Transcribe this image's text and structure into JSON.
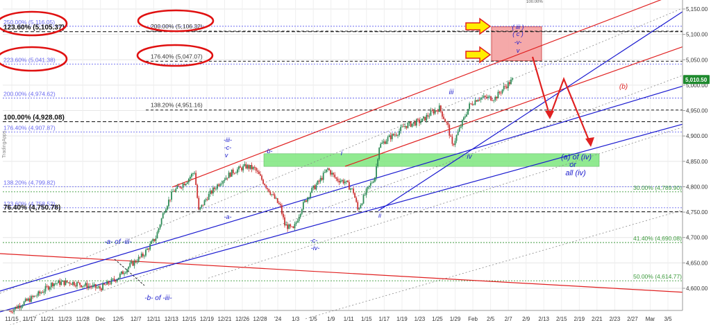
{
  "chart_data": {
    "type": "candlestick",
    "title": "",
    "xlabel": "",
    "ylabel": "",
    "ylim": [
      4550,
      5175
    ],
    "side_watermark": "TradingApps",
    "last_price": "5,010.50",
    "y_ticks": [
      "5,150.00",
      "5,100.00",
      "5,050.00",
      "5,000.00",
      "4,950.00",
      "4,900.00",
      "4,850.00",
      "4,800.00",
      "4,750.00",
      "4,700.00",
      "4,650.00",
      "4,600.00"
    ],
    "y_tick_values": [
      5150,
      5100,
      5050,
      5000,
      4950,
      4900,
      4850,
      4800,
      4750,
      4700,
      4650,
      4600
    ],
    "x_ticks": [
      "11/15",
      "11/17",
      "11/21",
      "11/23",
      "11/28",
      "Dec",
      "12/5",
      "12/7",
      "12/11",
      "12/13",
      "12/15",
      "12/19",
      "12/21",
      "12/26",
      "12/28",
      "'24",
      "1/3",
      "1/5",
      "1/9",
      "1/11",
      "1/15",
      "1/17",
      "1/19",
      "1/23",
      "1/25",
      "1/29",
      "Feb",
      "2/5",
      "2/7",
      "2/9",
      "2/13",
      "2/15",
      "2/19",
      "2/21",
      "2/23",
      "2/27",
      "Mar",
      "3/5"
    ],
    "price_path": [
      [
        0,
        4555
      ],
      [
        4,
        4575
      ],
      [
        7,
        4590
      ],
      [
        10,
        4610
      ],
      [
        14,
        4612
      ],
      [
        18,
        4605
      ],
      [
        21,
        4600
      ],
      [
        25,
        4620
      ],
      [
        28,
        4645
      ],
      [
        31,
        4665
      ],
      [
        34,
        4700
      ],
      [
        36,
        4755
      ],
      [
        38,
        4790
      ],
      [
        41,
        4810
      ],
      [
        43,
        4830
      ],
      [
        44,
        4752
      ],
      [
        46,
        4780
      ],
      [
        49,
        4810
      ],
      [
        52,
        4830
      ],
      [
        55,
        4840
      ],
      [
        57,
        4835
      ],
      [
        59,
        4810
      ],
      [
        61,
        4785
      ],
      [
        63,
        4760
      ],
      [
        64,
        4725
      ],
      [
        66,
        4715
      ],
      [
        68,
        4760
      ],
      [
        70,
        4790
      ],
      [
        72,
        4810
      ],
      [
        74,
        4835
      ],
      [
        76,
        4815
      ],
      [
        78,
        4810
      ],
      [
        80,
        4790
      ],
      [
        81,
        4755
      ],
      [
        83,
        4790
      ],
      [
        85,
        4820
      ],
      [
        86,
        4880
      ],
      [
        88,
        4895
      ],
      [
        90,
        4905
      ],
      [
        92,
        4920
      ],
      [
        94,
        4925
      ],
      [
        96,
        4930
      ],
      [
        98,
        4945
      ],
      [
        100,
        4955
      ],
      [
        102,
        4918
      ],
      [
        103,
        4880
      ],
      [
        105,
        4920
      ],
      [
        107,
        4960
      ],
      [
        109,
        4975
      ],
      [
        111,
        4975
      ],
      [
        113,
        4975
      ],
      [
        115,
        4995
      ],
      [
        117,
        5010
      ]
    ],
    "fib_levels_left": [
      {
        "label": "250.00% (5,116.05)",
        "value": 5116.05,
        "color": "#6a6af0"
      },
      {
        "label": "123.60% (5,105.37)",
        "value": 5105.37,
        "color": "#111111",
        "bold": true
      },
      {
        "label": "223.60% (5,041.38)",
        "value": 5041.38,
        "color": "#6a6af0"
      },
      {
        "label": "200.00% (4,974.62)",
        "value": 4974.62,
        "color": "#6a6af0"
      },
      {
        "label": "100.00% (4,928.08)",
        "value": 4928.08,
        "color": "#111111",
        "bold": true
      },
      {
        "label": "176.40% (4,907.87)",
        "value": 4907.87,
        "color": "#6a6af0"
      },
      {
        "label": "138.20% (4,799.82)",
        "value": 4799.82,
        "color": "#6a6af0"
      },
      {
        "label": "123.60% (4,758.52)",
        "value": 4758.52,
        "color": "#6a6af0"
      },
      {
        "label": "76.40% (4,750.78)",
        "value": 4750.78,
        "color": "#111111",
        "bold": true
      }
    ],
    "fib_levels_mid": [
      {
        "label": "200.00% (5,106.32)",
        "value": 5106.32
      },
      {
        "label": "176.40% (5,047.07)",
        "value": 5047.07
      },
      {
        "label": "138.20% (4,951.16)",
        "value": 4951.16
      }
    ],
    "fib_levels_right": [
      {
        "label": "30.00% (4,789.90)",
        "value": 4789.9
      },
      {
        "label": "41.40% (4,690.08)",
        "value": 4690.08
      },
      {
        "label": "50.00% (4,614.77)",
        "value": 4614.77
      }
    ],
    "top_fragment": "100.00%",
    "wave_labels": [
      {
        "text": "-iii-",
        "color": "#1a1acc"
      },
      {
        "text": "-c-",
        "color": "#1a1acc"
      },
      {
        "text": "v",
        "color": "#1a1acc"
      },
      {
        "text": "-b-",
        "color": "#1a1acc"
      },
      {
        "text": "i",
        "color": "#1a1acc"
      },
      {
        "text": "iii",
        "color": "#1a1acc"
      },
      {
        "text": "iv",
        "color": "#1a1acc"
      },
      {
        "text": "ii",
        "color": "#1a1acc"
      },
      {
        "text": "-a-",
        "color": "#1a1acc"
      },
      {
        "text": "-c-",
        "color": "#1a1acc"
      },
      {
        "text": "-iv-",
        "color": "#1a1acc"
      },
      {
        "text": "-a- of -iii-",
        "color": "#1a1acc"
      },
      {
        "text": "-b- of -iii-",
        "color": "#1a1acc"
      },
      {
        "text": "(b)",
        "color": "#dd2222"
      },
      {
        "text": "(a) of (iv)",
        "color": "#1a1acc"
      },
      {
        "text": "or",
        "color": "#1a1acc"
      },
      {
        "text": "all (iv)",
        "color": "#1a1acc"
      }
    ],
    "target_box_labels": [
      "( iii )",
      "( c )",
      "-v-",
      "v"
    ],
    "target_box": {
      "y_top": 5115,
      "y_bottom": 5048,
      "color": "#f4a0a0"
    },
    "support_zone": {
      "y_top": 4865,
      "y_bottom": 4840,
      "color": "#7ee67e"
    },
    "grid": true,
    "legend": "none"
  },
  "colors": {
    "up_candle": "#2e8b57",
    "down_candle": "#cc3333",
    "channel_red": "#e02020",
    "channel_blue": "#1a1ad0",
    "fib_blue_dotted": "#6a6af0",
    "fib_green_dotted": "#3c9a3c",
    "ellipse": "#e01010",
    "arrow": "#ffee00"
  }
}
